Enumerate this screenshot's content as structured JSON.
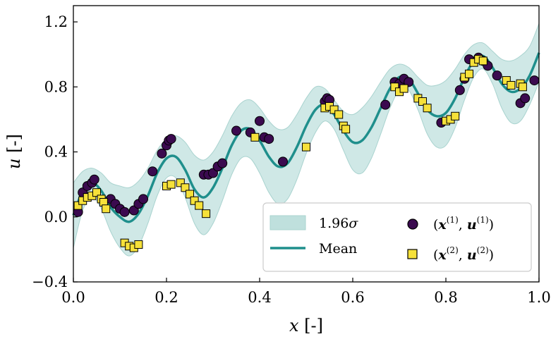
{
  "chart_data": {
    "type": "scatter",
    "title": "",
    "xlabel": {
      "var": "x",
      "unit": "[-]"
    },
    "ylabel": {
      "var": "u",
      "unit": "[-]"
    },
    "xlim": [
      0.0,
      1.0
    ],
    "ylim": [
      -0.4,
      1.3
    ],
    "xticks": [
      0.0,
      0.2,
      0.4,
      0.6,
      0.8,
      1.0
    ],
    "xtick_labels": [
      "0.0",
      "0.2",
      "0.4",
      "0.6",
      "0.8",
      "1.0"
    ],
    "yticks": [
      -0.4,
      0.0,
      0.4,
      0.8,
      1.2
    ],
    "ytick_labels": [
      "−0.4",
      "0.0",
      "0.4",
      "0.8",
      "1.2"
    ],
    "legend_position": "lower-right",
    "colors": {
      "mean": "#1f8f8c",
      "band": "#bfe0dd",
      "series1": "#3b0a4f",
      "series2": "#f6e13a",
      "marker_edge": "#000000"
    },
    "mean_curve": {
      "name": "Mean",
      "x": [
        0.0,
        0.02,
        0.04,
        0.06,
        0.08,
        0.1,
        0.12,
        0.14,
        0.16,
        0.18,
        0.2,
        0.22,
        0.24,
        0.26,
        0.28,
        0.3,
        0.32,
        0.34,
        0.36,
        0.38,
        0.4,
        0.42,
        0.44,
        0.46,
        0.48,
        0.5,
        0.52,
        0.54,
        0.56,
        0.58,
        0.6,
        0.62,
        0.64,
        0.66,
        0.68,
        0.7,
        0.72,
        0.74,
        0.76,
        0.78,
        0.8,
        0.82,
        0.84,
        0.86,
        0.88,
        0.9,
        0.92,
        0.94,
        0.96,
        0.98,
        1.0
      ],
      "y": [
        0.01,
        0.16,
        0.21,
        0.16,
        0.06,
        0.0,
        -0.03,
        0.02,
        0.13,
        0.27,
        0.36,
        0.37,
        0.29,
        0.17,
        0.12,
        0.18,
        0.3,
        0.44,
        0.53,
        0.54,
        0.47,
        0.37,
        0.31,
        0.33,
        0.43,
        0.56,
        0.66,
        0.69,
        0.63,
        0.53,
        0.46,
        0.47,
        0.55,
        0.67,
        0.79,
        0.86,
        0.85,
        0.76,
        0.66,
        0.62,
        0.64,
        0.73,
        0.86,
        0.96,
        0.99,
        0.92,
        0.82,
        0.77,
        0.79,
        0.87,
        1.01
      ]
    },
    "band": {
      "name": "1.96σ",
      "halfwidth": [
        0.2,
        0.12,
        0.09,
        0.11,
        0.15,
        0.19,
        0.21,
        0.2,
        0.17,
        0.14,
        0.12,
        0.13,
        0.17,
        0.21,
        0.23,
        0.22,
        0.2,
        0.18,
        0.17,
        0.18,
        0.2,
        0.22,
        0.23,
        0.22,
        0.2,
        0.17,
        0.14,
        0.1,
        0.09,
        0.12,
        0.17,
        0.2,
        0.19,
        0.16,
        0.12,
        0.08,
        0.07,
        0.1,
        0.15,
        0.19,
        0.2,
        0.18,
        0.14,
        0.1,
        0.08,
        0.1,
        0.15,
        0.19,
        0.2,
        0.18,
        0.18
      ]
    },
    "series": [
      {
        "name": "(x(1), u(1))",
        "marker": "circle",
        "points": [
          [
            0.01,
            0.03
          ],
          [
            0.02,
            0.15
          ],
          [
            0.03,
            0.19
          ],
          [
            0.04,
            0.21
          ],
          [
            0.045,
            0.23
          ],
          [
            0.08,
            0.11
          ],
          [
            0.09,
            0.08
          ],
          [
            0.1,
            0.05
          ],
          [
            0.11,
            0.03
          ],
          [
            0.13,
            0.04
          ],
          [
            0.14,
            0.08
          ],
          [
            0.15,
            0.11
          ],
          [
            0.17,
            0.28
          ],
          [
            0.19,
            0.39
          ],
          [
            0.2,
            0.44
          ],
          [
            0.205,
            0.47
          ],
          [
            0.21,
            0.48
          ],
          [
            0.28,
            0.26
          ],
          [
            0.29,
            0.26
          ],
          [
            0.3,
            0.27
          ],
          [
            0.31,
            0.31
          ],
          [
            0.32,
            0.33
          ],
          [
            0.35,
            0.53
          ],
          [
            0.38,
            0.52
          ],
          [
            0.4,
            0.59
          ],
          [
            0.41,
            0.49
          ],
          [
            0.42,
            0.48
          ],
          [
            0.45,
            0.34
          ],
          [
            0.54,
            0.71
          ],
          [
            0.545,
            0.73
          ],
          [
            0.55,
            0.72
          ],
          [
            0.67,
            0.69
          ],
          [
            0.69,
            0.83
          ],
          [
            0.7,
            0.82
          ],
          [
            0.71,
            0.85
          ],
          [
            0.72,
            0.83
          ],
          [
            0.79,
            0.58
          ],
          [
            0.83,
            0.78
          ],
          [
            0.84,
            0.85
          ],
          [
            0.85,
            0.97
          ],
          [
            0.87,
            0.98
          ],
          [
            0.88,
            0.96
          ],
          [
            0.89,
            0.93
          ],
          [
            0.91,
            0.87
          ],
          [
            0.96,
            0.7
          ],
          [
            0.97,
            0.73
          ],
          [
            0.99,
            0.84
          ]
        ]
      },
      {
        "name": "(x(2), u(2))",
        "marker": "square",
        "points": [
          [
            0.01,
            0.07
          ],
          [
            0.02,
            0.1
          ],
          [
            0.03,
            0.12
          ],
          [
            0.04,
            0.13
          ],
          [
            0.05,
            0.15
          ],
          [
            0.06,
            0.11
          ],
          [
            0.065,
            0.09
          ],
          [
            0.07,
            0.05
          ],
          [
            0.11,
            -0.16
          ],
          [
            0.12,
            -0.18
          ],
          [
            0.13,
            -0.19
          ],
          [
            0.14,
            -0.17
          ],
          [
            0.2,
            0.19
          ],
          [
            0.21,
            0.2
          ],
          [
            0.23,
            0.21
          ],
          [
            0.24,
            0.18
          ],
          [
            0.25,
            0.14
          ],
          [
            0.26,
            0.1
          ],
          [
            0.27,
            0.07
          ],
          [
            0.285,
            0.02
          ],
          [
            0.39,
            0.49
          ],
          [
            0.5,
            0.43
          ],
          [
            0.54,
            0.67
          ],
          [
            0.55,
            0.68
          ],
          [
            0.56,
            0.66
          ],
          [
            0.57,
            0.63
          ],
          [
            0.58,
            0.56
          ],
          [
            0.585,
            0.54
          ],
          [
            0.69,
            0.8
          ],
          [
            0.7,
            0.77
          ],
          [
            0.71,
            0.79
          ],
          [
            0.74,
            0.73
          ],
          [
            0.75,
            0.71
          ],
          [
            0.76,
            0.67
          ],
          [
            0.8,
            0.59
          ],
          [
            0.81,
            0.6
          ],
          [
            0.82,
            0.62
          ],
          [
            0.84,
            0.86
          ],
          [
            0.85,
            0.88
          ],
          [
            0.86,
            0.95
          ],
          [
            0.87,
            0.97
          ],
          [
            0.88,
            0.96
          ],
          [
            0.93,
            0.84
          ],
          [
            0.94,
            0.81
          ],
          [
            0.96,
            0.82
          ],
          [
            0.965,
            0.8
          ]
        ]
      }
    ],
    "legend": {
      "band_label": "1.96",
      "band_symbol": "σ",
      "mean_label": "Mean",
      "series1": {
        "open": "(",
        "vec": "x",
        "sup": "(1)",
        "comma": ", ",
        "vec2": "u",
        "close": ")"
      },
      "series2": {
        "open": "(",
        "vec": "x",
        "sup": "(2)",
        "comma": ", ",
        "vec2": "u",
        "close": ")"
      }
    }
  }
}
